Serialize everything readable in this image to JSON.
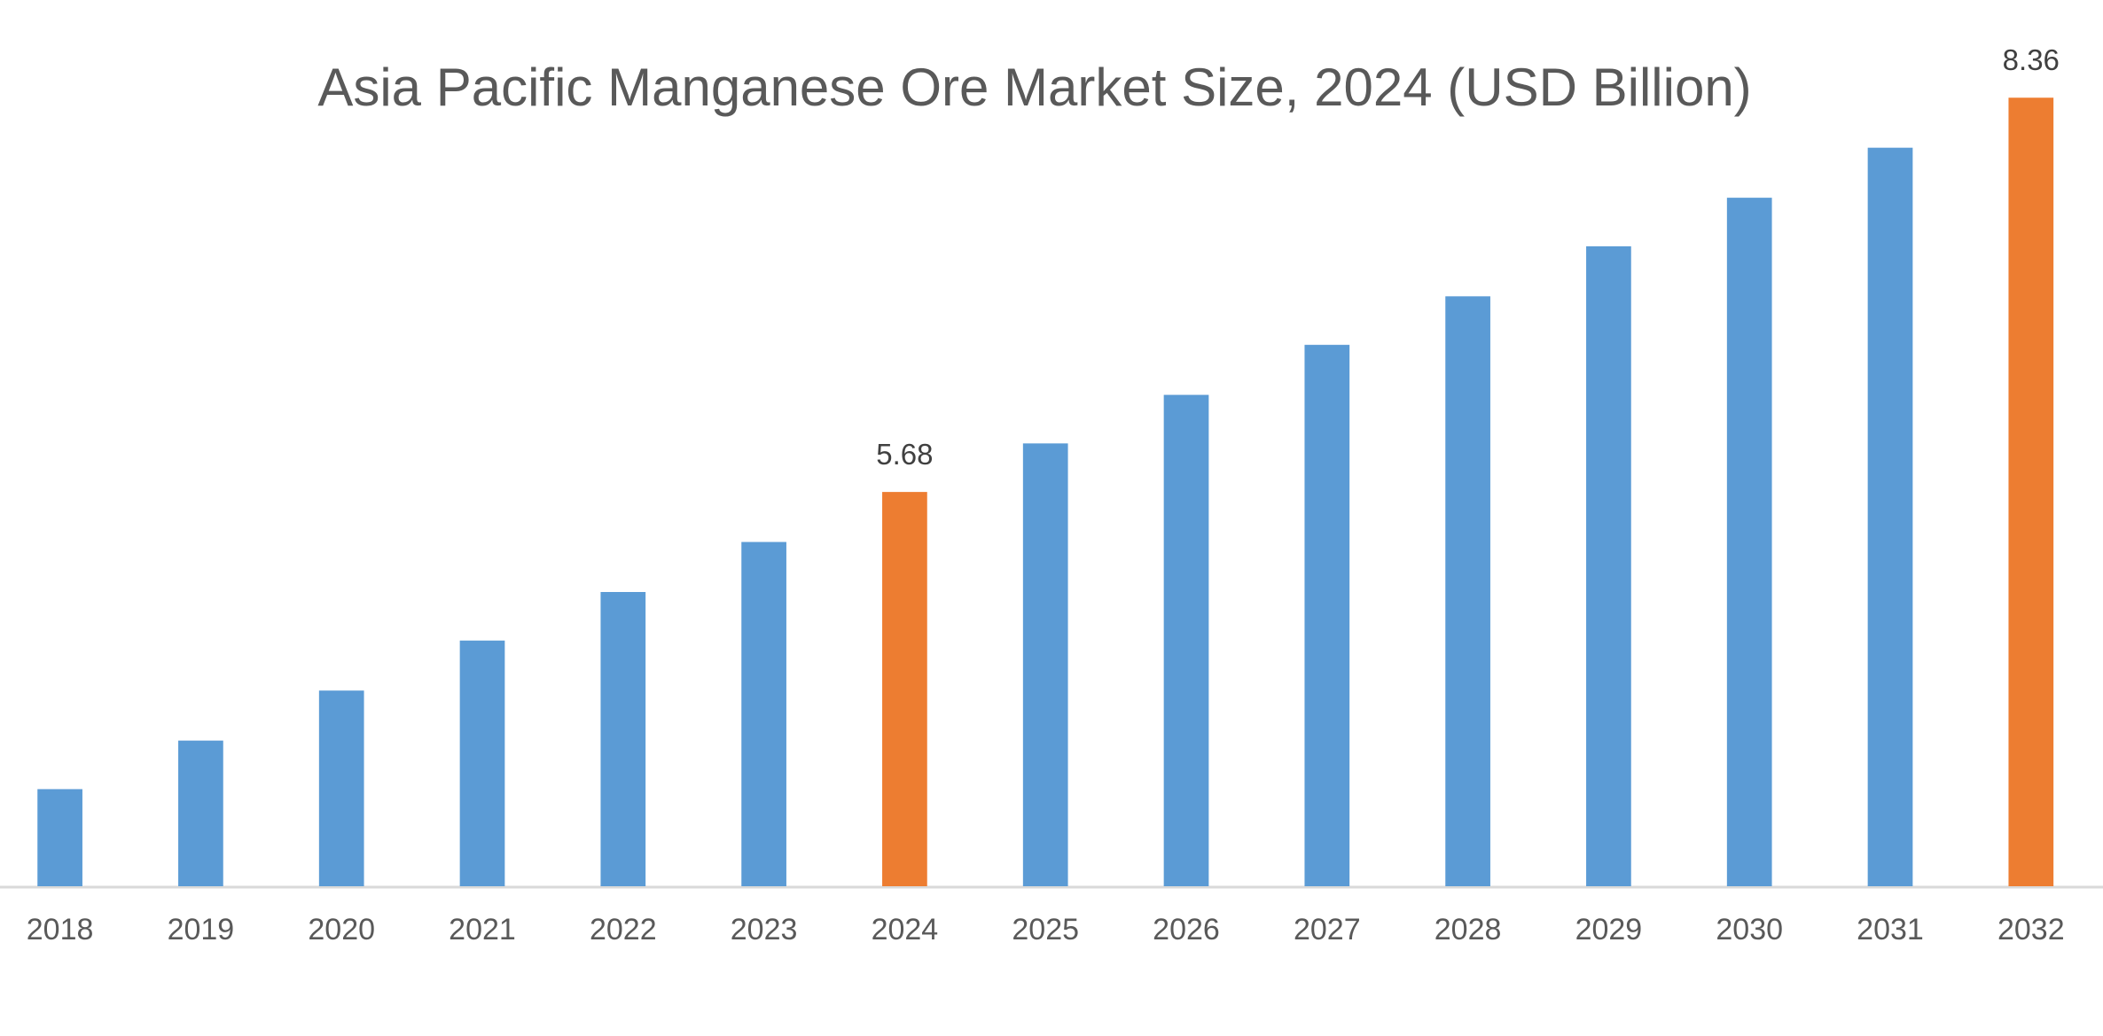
{
  "chart_data": {
    "type": "bar",
    "title": "Asia Pacific Manganese Ore Market Size, 2024 (USD Billion)",
    "categories": [
      "2018",
      "2019",
      "2020",
      "2021",
      "2022",
      "2023",
      "2024",
      "2025",
      "2026",
      "2027",
      "2028",
      "2029",
      "2030",
      "2031",
      "2032"
    ],
    "values": [
      3.66,
      3.99,
      4.33,
      4.67,
      5.0,
      5.34,
      5.68,
      6.01,
      6.34,
      6.68,
      7.01,
      7.35,
      7.68,
      8.02,
      8.36
    ],
    "value_labels": [
      null,
      null,
      null,
      null,
      null,
      null,
      "5.68",
      null,
      null,
      null,
      null,
      null,
      null,
      null,
      "8.36"
    ],
    "colors": [
      "#5b9bd5",
      "#5b9bd5",
      "#5b9bd5",
      "#5b9bd5",
      "#5b9bd5",
      "#5b9bd5",
      "#ed7d31",
      "#5b9bd5",
      "#5b9bd5",
      "#5b9bd5",
      "#5b9bd5",
      "#5b9bd5",
      "#5b9bd5",
      "#5b9bd5",
      "#ed7d31"
    ],
    "ylim": [
      3,
      9
    ]
  }
}
